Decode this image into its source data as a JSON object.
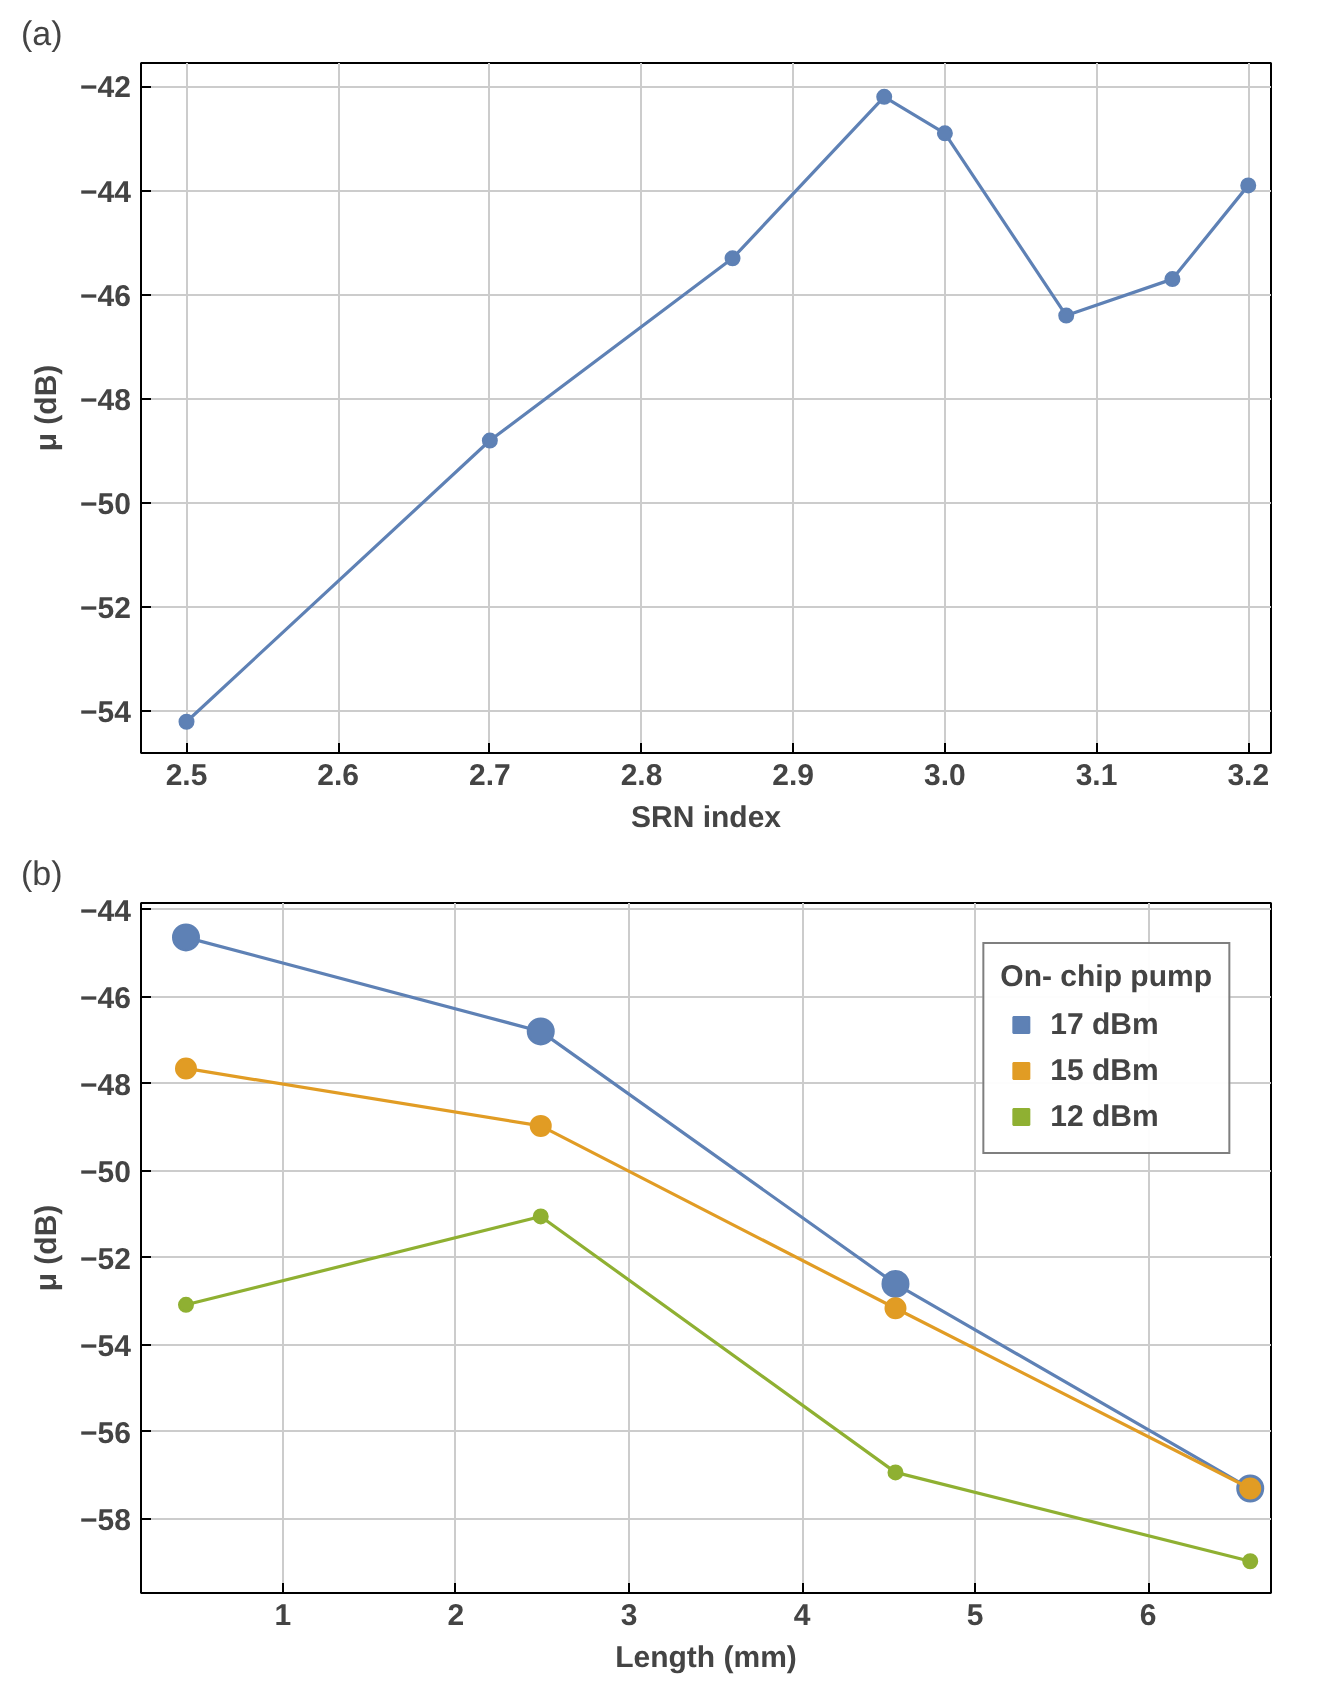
{
  "chart_data": [
    {
      "type": "line",
      "title": "(a)",
      "xlabel": "SRN index",
      "ylabel": "μ (dB)",
      "x": [
        2.5,
        2.7,
        2.86,
        2.96,
        3.0,
        3.08,
        3.15,
        3.2
      ],
      "series": [
        {
          "color": "#5e81b5",
          "values": [
            -54.2,
            -48.8,
            -45.3,
            -42.2,
            -42.9,
            -46.4,
            -45.7,
            -43.9
          ]
        }
      ],
      "xlim": [
        2.47,
        3.215
      ],
      "ylim": [
        -54.8,
        -41.55
      ],
      "xticks": [
        {
          "value": 2.5,
          "label": "2.5"
        },
        2.6,
        2.7,
        2.8,
        2.9,
        {
          "value": 3.0,
          "label": "3.0"
        },
        3.1,
        3.2
      ],
      "yticks": [
        -54,
        -52,
        -50,
        -48,
        -46,
        -44,
        -42
      ],
      "grid": true,
      "marker": "circle",
      "line_style": "solid"
    },
    {
      "type": "line",
      "title": "(b)",
      "xlabel": "Length (mm)",
      "ylabel": "μ (dB)",
      "legend_title": "On- chip pump",
      "x": [
        0.44,
        2.49,
        4.54,
        6.59
      ],
      "series": [
        {
          "name": "17 dBm",
          "color": "#5e81b5",
          "values": [
            -44.64,
            -46.8,
            -52.6,
            -57.3
          ]
        },
        {
          "name": "15 dBm",
          "color": "#e19c24",
          "values": [
            -47.65,
            -48.97,
            -53.16,
            -57.3
          ]
        },
        {
          "name": "12 dBm",
          "color": "#8fb032",
          "values": [
            -53.08,
            -51.05,
            -56.93,
            -58.97
          ]
        }
      ],
      "xlim": [
        0.18,
        6.71
      ],
      "ylim": [
        -59.7,
        -43.85
      ],
      "xticks": [
        1,
        2,
        3,
        4,
        5,
        6
      ],
      "yticks": [
        -58,
        -56,
        -54,
        -52,
        -50,
        -48,
        -46,
        -44
      ],
      "grid": true,
      "legend": "top right",
      "marker": "circle",
      "line_style": "solid"
    }
  ]
}
